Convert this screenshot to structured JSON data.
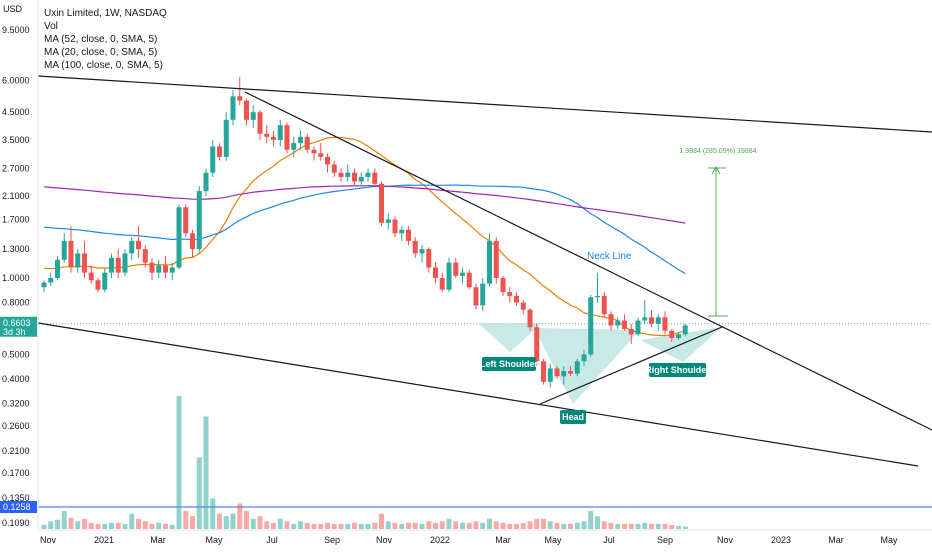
{
  "header": {
    "currency": "USD",
    "title": "Uxin Limited, 1W, NASDAQ",
    "indicators": [
      "Vol",
      "MA (52, close, 0, SMA, 5)",
      "MA (20, close, 0, SMA, 5)",
      "MA (100, close, 0, SMA, 5)"
    ]
  },
  "colors": {
    "up": "#26a69a",
    "down": "#ef5350",
    "ma20": "#f57c00",
    "ma52": "#1e88e5",
    "ma100": "#9c27b0",
    "trend": "#131722",
    "pattern_fill": "#b2dfdb",
    "label_bg": "#00897b",
    "measure": "#4caf50",
    "price_badge": "#26a69a",
    "vol_line": "#2962ff"
  },
  "chart_data": {
    "type": "candlestick",
    "scale": "log",
    "price_axis_ticks": [
      "9.5000",
      "6.0000",
      "4.5000",
      "3.5000",
      "2.7000",
      "2.1000",
      "1.7000",
      "1.3000",
      "1.0000",
      "0.8000",
      "0.6603",
      "0.5000",
      "0.4000",
      "0.3200",
      "0.2600",
      "0.2100",
      "0.1700",
      "0.1350",
      "0.1258",
      "0.1090"
    ],
    "current_price": "0.6603",
    "countdown": "3d 3h",
    "volume_line_value": "0.1258",
    "time_axis": [
      "Nov",
      "2021",
      "Mar",
      "May",
      "Jul",
      "Sep",
      "Nov",
      "2022",
      "Mar",
      "May",
      "Jul",
      "Sep",
      "Nov",
      "2023",
      "Mar",
      "May"
    ],
    "candles": [
      [
        0.92,
        0.98,
        0.88,
        0.96
      ],
      [
        0.96,
        1.05,
        0.93,
        1.0
      ],
      [
        1.0,
        1.22,
        0.98,
        1.18
      ],
      [
        1.18,
        1.5,
        1.15,
        1.4
      ],
      [
        1.4,
        1.6,
        1.05,
        1.1
      ],
      [
        1.1,
        1.3,
        1.05,
        1.25
      ],
      [
        1.25,
        1.4,
        1.0,
        1.05
      ],
      [
        1.05,
        1.12,
        0.95,
        0.98
      ],
      [
        0.98,
        1.0,
        0.88,
        0.9
      ],
      [
        0.9,
        1.1,
        0.88,
        1.05
      ],
      [
        1.05,
        1.25,
        1.0,
        1.2
      ],
      [
        1.2,
        1.3,
        1.0,
        1.05
      ],
      [
        1.05,
        1.3,
        1.02,
        1.25
      ],
      [
        1.25,
        1.45,
        1.18,
        1.4
      ],
      [
        1.4,
        1.6,
        1.2,
        1.3
      ],
      [
        1.3,
        1.35,
        1.1,
        1.15
      ],
      [
        1.15,
        1.2,
        0.98,
        1.05
      ],
      [
        1.05,
        1.18,
        1.0,
        1.12
      ],
      [
        1.12,
        1.22,
        1.0,
        1.05
      ],
      [
        1.05,
        1.15,
        0.98,
        1.1
      ],
      [
        1.1,
        1.95,
        1.08,
        1.9
      ],
      [
        1.9,
        1.95,
        1.45,
        1.5
      ],
      [
        1.5,
        1.55,
        1.2,
        1.3
      ],
      [
        1.3,
        2.3,
        1.25,
        2.2
      ],
      [
        2.2,
        2.7,
        2.1,
        2.6
      ],
      [
        2.6,
        3.5,
        2.5,
        3.3
      ],
      [
        3.3,
        3.4,
        2.9,
        3.0
      ],
      [
        3.0,
        4.5,
        2.9,
        4.2
      ],
      [
        4.2,
        5.5,
        4.0,
        5.2
      ],
      [
        5.2,
        6.2,
        4.8,
        5.0
      ],
      [
        5.0,
        5.1,
        4.0,
        4.2
      ],
      [
        4.2,
        4.8,
        3.9,
        4.5
      ],
      [
        4.5,
        4.6,
        3.5,
        3.7
      ],
      [
        3.7,
        4.0,
        3.4,
        3.6
      ],
      [
        3.6,
        3.8,
        3.3,
        3.5
      ],
      [
        3.5,
        4.2,
        3.3,
        4.0
      ],
      [
        4.0,
        4.1,
        3.1,
        3.2
      ],
      [
        3.2,
        3.6,
        3.0,
        3.4
      ],
      [
        3.4,
        3.8,
        3.2,
        3.6
      ],
      [
        3.6,
        3.7,
        3.1,
        3.2
      ],
      [
        3.2,
        3.3,
        2.9,
        3.1
      ],
      [
        3.1,
        3.4,
        2.9,
        3.0
      ],
      [
        3.0,
        3.1,
        2.6,
        2.8
      ],
      [
        2.8,
        2.9,
        2.5,
        2.6
      ],
      [
        2.6,
        2.7,
        2.4,
        2.5
      ],
      [
        2.5,
        2.8,
        2.4,
        2.6
      ],
      [
        2.6,
        2.7,
        2.3,
        2.4
      ],
      [
        2.4,
        2.6,
        2.3,
        2.5
      ],
      [
        2.5,
        2.7,
        2.4,
        2.6
      ],
      [
        2.6,
        2.7,
        2.3,
        2.35
      ],
      [
        2.35,
        2.4,
        1.6,
        1.65
      ],
      [
        1.65,
        1.8,
        1.55,
        1.7
      ],
      [
        1.7,
        1.75,
        1.45,
        1.5
      ],
      [
        1.5,
        1.6,
        1.4,
        1.55
      ],
      [
        1.55,
        1.6,
        1.35,
        1.4
      ],
      [
        1.4,
        1.45,
        1.2,
        1.25
      ],
      [
        1.25,
        1.35,
        1.15,
        1.3
      ],
      [
        1.3,
        1.32,
        1.05,
        1.1
      ],
      [
        1.1,
        1.15,
        0.95,
        1.0
      ],
      [
        1.0,
        1.05,
        0.88,
        0.9
      ],
      [
        0.9,
        1.2,
        0.88,
        1.15
      ],
      [
        1.15,
        1.2,
        1.0,
        1.02
      ],
      [
        1.02,
        1.1,
        0.95,
        1.05
      ],
      [
        1.05,
        1.08,
        0.9,
        0.92
      ],
      [
        0.92,
        0.95,
        0.75,
        0.78
      ],
      [
        0.78,
        1.0,
        0.74,
        0.95
      ],
      [
        0.95,
        1.5,
        0.93,
        1.4
      ],
      [
        1.4,
        1.45,
        0.95,
        1.0
      ],
      [
        1.0,
        1.02,
        0.85,
        0.88
      ],
      [
        0.88,
        0.92,
        0.8,
        0.85
      ],
      [
        0.85,
        0.88,
        0.78,
        0.8
      ],
      [
        0.8,
        0.82,
        0.72,
        0.75
      ],
      [
        0.75,
        0.76,
        0.62,
        0.64
      ],
      [
        0.64,
        0.66,
        0.45,
        0.47
      ],
      [
        0.47,
        0.48,
        0.38,
        0.39
      ],
      [
        0.39,
        0.46,
        0.37,
        0.44
      ],
      [
        0.44,
        0.45,
        0.4,
        0.41
      ],
      [
        0.41,
        0.45,
        0.38,
        0.43
      ],
      [
        0.43,
        0.45,
        0.41,
        0.42
      ],
      [
        0.42,
        0.48,
        0.41,
        0.47
      ],
      [
        0.47,
        0.52,
        0.45,
        0.5
      ],
      [
        0.5,
        0.86,
        0.49,
        0.84
      ],
      [
        0.84,
        1.05,
        0.8,
        0.85
      ],
      [
        0.85,
        0.88,
        0.7,
        0.72
      ],
      [
        0.72,
        0.74,
        0.62,
        0.65
      ],
      [
        0.65,
        0.7,
        0.63,
        0.68
      ],
      [
        0.68,
        0.72,
        0.62,
        0.63
      ],
      [
        0.63,
        0.66,
        0.55,
        0.6
      ],
      [
        0.6,
        0.7,
        0.59,
        0.68
      ],
      [
        0.68,
        0.82,
        0.66,
        0.7
      ],
      [
        0.7,
        0.75,
        0.64,
        0.66
      ],
      [
        0.66,
        0.72,
        0.62,
        0.7
      ],
      [
        0.7,
        0.74,
        0.6,
        0.62
      ],
      [
        0.62,
        0.63,
        0.56,
        0.58
      ],
      [
        0.58,
        0.61,
        0.57,
        0.6
      ],
      [
        0.6,
        0.66,
        0.59,
        0.65
      ]
    ],
    "volumes": [
      0.08,
      0.15,
      0.18,
      0.35,
      0.22,
      0.15,
      0.2,
      0.12,
      0.1,
      0.1,
      0.12,
      0.12,
      0.1,
      0.3,
      0.2,
      0.15,
      0.1,
      0.12,
      0.1,
      0.08,
      2.6,
      0.35,
      0.25,
      1.4,
      2.2,
      0.6,
      0.3,
      0.25,
      0.3,
      0.5,
      0.35,
      0.2,
      0.25,
      0.15,
      0.12,
      0.2,
      0.15,
      0.1,
      0.15,
      0.12,
      0.1,
      0.1,
      0.12,
      0.1,
      0.1,
      0.1,
      0.12,
      0.1,
      0.1,
      0.12,
      0.3,
      0.15,
      0.12,
      0.1,
      0.12,
      0.12,
      0.1,
      0.15,
      0.12,
      0.15,
      0.2,
      0.15,
      0.12,
      0.12,
      0.15,
      0.12,
      0.2,
      0.15,
      0.12,
      0.1,
      0.1,
      0.12,
      0.15,
      0.2,
      0.2,
      0.15,
      0.12,
      0.1,
      0.1,
      0.12,
      0.15,
      0.35,
      0.25,
      0.15,
      0.12,
      0.1,
      0.1,
      0.1,
      0.1,
      0.12,
      0.1,
      0.1,
      0.1,
      0.08,
      0.06,
      0.05
    ],
    "annotations": {
      "neck_line": "Neck Line",
      "left_shoulder": "Left Shoulder",
      "head": "Head",
      "right_shoulder": "Right Shoulder",
      "measure": "1.9884 (285.09%) 19884"
    }
  }
}
